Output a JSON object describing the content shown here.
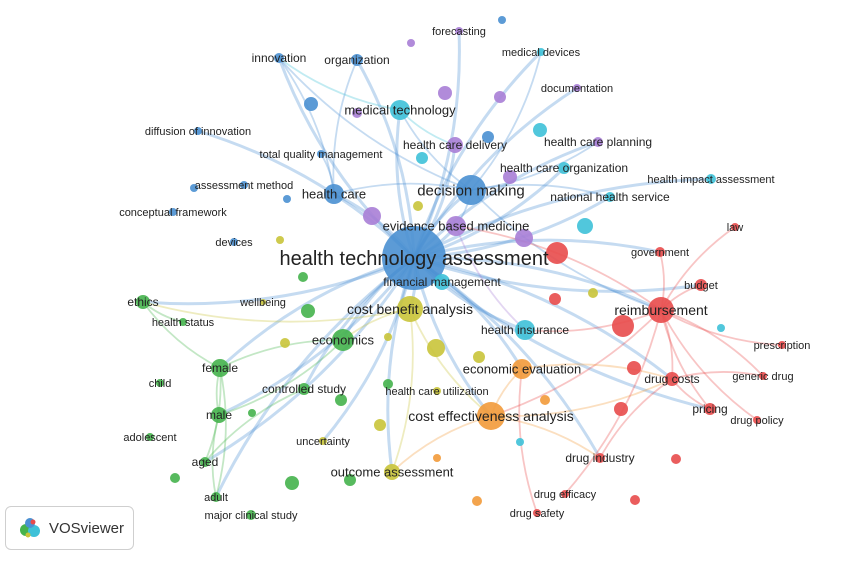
{
  "colors": {
    "blue": "#4a90d2",
    "green": "#45b34c",
    "red": "#e84b4b",
    "yellow": "#c9c43a",
    "purple": "#a97ed6",
    "cyan": "#3ec1d8",
    "orange": "#f29a3a"
  },
  "badge": {
    "label": "VOSviewer",
    "icon": "vosviewer-logo-icon"
  },
  "nodes": [
    {
      "id": "hta",
      "label": "health technology assessment",
      "cluster": "blue",
      "weight": 10
    },
    {
      "id": "decision_making",
      "label": "decision making",
      "cluster": "blue",
      "weight": 5
    },
    {
      "id": "health_care",
      "label": "health care",
      "cluster": "blue",
      "weight": 3
    },
    {
      "id": "innovation",
      "label": "innovation",
      "cluster": "blue",
      "weight": 2
    },
    {
      "id": "organization",
      "label": "organization",
      "cluster": "blue",
      "weight": 2
    },
    {
      "id": "diffusion_of_innovation",
      "label": "diffusion of innovation",
      "cluster": "blue",
      "weight": 1
    },
    {
      "id": "assessment_method",
      "label": "assessment method",
      "cluster": "blue",
      "weight": 1
    },
    {
      "id": "conceptual_framework",
      "label": "conceptual framework",
      "cluster": "blue",
      "weight": 1
    },
    {
      "id": "devices",
      "label": "devices",
      "cluster": "blue",
      "weight": 1
    },
    {
      "id": "total_quality_management",
      "label": "total quality management",
      "cluster": "blue",
      "weight": 1
    },
    {
      "id": "forecasting",
      "label": "forecasting",
      "cluster": "purple",
      "weight": 1
    },
    {
      "id": "medical_devices",
      "label": "medical devices",
      "cluster": "cyan",
      "weight": 1
    },
    {
      "id": "documentation",
      "label": "documentation",
      "cluster": "purple",
      "weight": 1
    },
    {
      "id": "medical_technology",
      "label": "medical technology",
      "cluster": "cyan",
      "weight": 3
    },
    {
      "id": "health_care_delivery",
      "label": "health care delivery",
      "cluster": "purple",
      "weight": 2
    },
    {
      "id": "health_care_planning",
      "label": "health care planning",
      "cluster": "purple",
      "weight": 2
    },
    {
      "id": "health_care_organization",
      "label": "health care organization",
      "cluster": "cyan",
      "weight": 2
    },
    {
      "id": "health_impact_assessment",
      "label": "health impact assessment",
      "cluster": "cyan",
      "weight": 1
    },
    {
      "id": "national_health_service",
      "label": "national health service",
      "cluster": "cyan",
      "weight": 2
    },
    {
      "id": "evidence_based_medicine",
      "label": "evidence based medicine",
      "cluster": "purple",
      "weight": 4
    },
    {
      "id": "financial_management",
      "label": "financial management",
      "cluster": "cyan",
      "weight": 2
    },
    {
      "id": "cost_benefit_analysis",
      "label": "cost benefit analysis",
      "cluster": "yellow",
      "weight": 5
    },
    {
      "id": "wellbeing",
      "label": "wellbeing",
      "cluster": "yellow",
      "weight": 1
    },
    {
      "id": "ethics",
      "label": "ethics",
      "cluster": "green",
      "weight": 2
    },
    {
      "id": "health_status",
      "label": "health status",
      "cluster": "green",
      "weight": 1
    },
    {
      "id": "economics",
      "label": "economics",
      "cluster": "green",
      "weight": 4
    },
    {
      "id": "female",
      "label": "female",
      "cluster": "green",
      "weight": 3
    },
    {
      "id": "child",
      "label": "child",
      "cluster": "green",
      "weight": 1
    },
    {
      "id": "controlled_study",
      "label": "controlled study",
      "cluster": "green",
      "weight": 2
    },
    {
      "id": "male",
      "label": "male",
      "cluster": "green",
      "weight": 3
    },
    {
      "id": "adolescent",
      "label": "adolescent",
      "cluster": "green",
      "weight": 1
    },
    {
      "id": "aged",
      "label": "aged",
      "cluster": "green",
      "weight": 2
    },
    {
      "id": "adult",
      "label": "adult",
      "cluster": "green",
      "weight": 2
    },
    {
      "id": "major_clinical_study",
      "label": "major clinical study",
      "cluster": "green",
      "weight": 1
    },
    {
      "id": "uncertainty",
      "label": "uncertainty",
      "cluster": "yellow",
      "weight": 1
    },
    {
      "id": "health_care_utilization",
      "label": "health care utilization",
      "cluster": "yellow",
      "weight": 1
    },
    {
      "id": "outcome_assessment",
      "label": "outcome assessment",
      "cluster": "yellow",
      "weight": 3
    },
    {
      "id": "economic_evaluation",
      "label": "economic evaluation",
      "cluster": "orange",
      "weight": 4
    },
    {
      "id": "cost_effectiveness_analysis",
      "label": "cost effectiveness analysis",
      "cluster": "orange",
      "weight": 6
    },
    {
      "id": "health_insurance",
      "label": "health insurance",
      "cluster": "cyan",
      "weight": 3
    },
    {
      "id": "reimbursement",
      "label": "reimbursement",
      "cluster": "red",
      "weight": 5
    },
    {
      "id": "law",
      "label": "law",
      "cluster": "red",
      "weight": 1
    },
    {
      "id": "government",
      "label": "government",
      "cluster": "red",
      "weight": 1
    },
    {
      "id": "budget",
      "label": "budget",
      "cluster": "red",
      "weight": 2
    },
    {
      "id": "prescription",
      "label": "prescription",
      "cluster": "red",
      "weight": 1
    },
    {
      "id": "generic_drug",
      "label": "generic drug",
      "cluster": "red",
      "weight": 1
    },
    {
      "id": "drug_costs",
      "label": "drug costs",
      "cluster": "red",
      "weight": 3
    },
    {
      "id": "pricing",
      "label": "pricing",
      "cluster": "red",
      "weight": 2
    },
    {
      "id": "drug_policy",
      "label": "drug policy",
      "cluster": "red",
      "weight": 1
    },
    {
      "id": "drug_industry",
      "label": "drug industry",
      "cluster": "red",
      "weight": 2
    },
    {
      "id": "drug_efficacy",
      "label": "drug efficacy",
      "cluster": "red",
      "weight": 1
    },
    {
      "id": "drug_safety",
      "label": "drug safety",
      "cluster": "red",
      "weight": 1
    }
  ]
}
